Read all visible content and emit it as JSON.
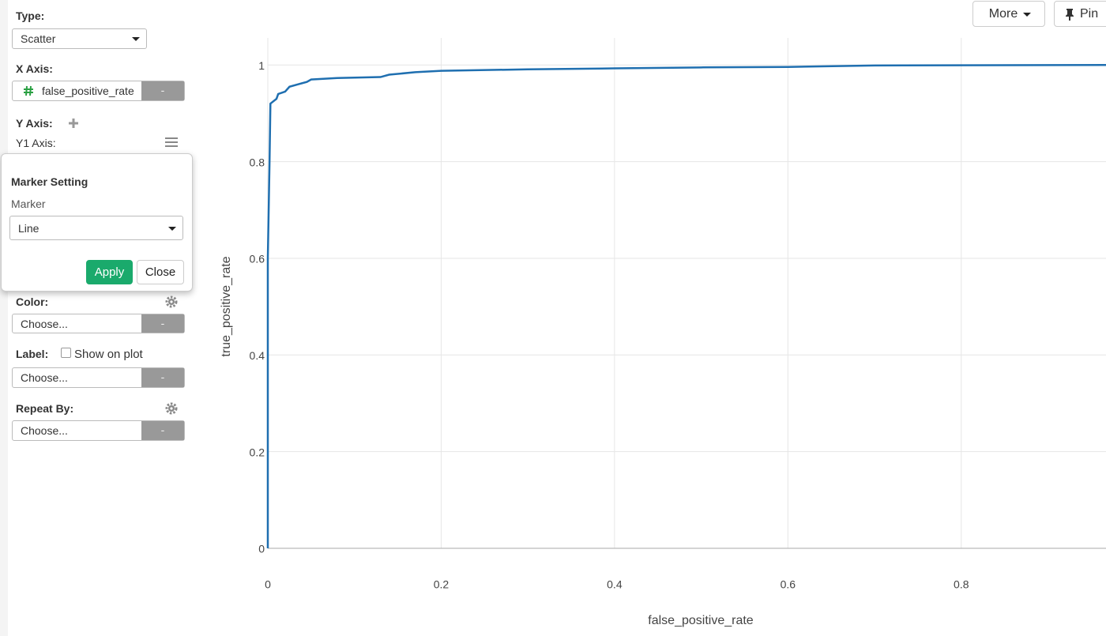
{
  "panel": {
    "type_label": "Type:",
    "type_value": "Scatter",
    "x_axis_label": "X Axis:",
    "x_axis_value": "false_positive_rate",
    "x_axis_remove": "-",
    "y_axis_label": "Y Axis:",
    "y1_axis_label": "Y1 Axis:",
    "popup": {
      "title": "Marker Setting",
      "field_label": "Marker",
      "field_value": "Line",
      "apply": "Apply",
      "close": "Close"
    },
    "color_label": "Color:",
    "color_value": "Choose...",
    "color_remove": "-",
    "label_label": "Label:",
    "label_checkbox": "Show on plot",
    "label_value": "Choose...",
    "label_remove": "-",
    "repeat_label": "Repeat By:",
    "repeat_value": "Choose...",
    "repeat_remove": "-"
  },
  "toolbar": {
    "more": "More",
    "pin": "Pin"
  },
  "chart_data": {
    "type": "line",
    "x_label": "false_positive_rate",
    "y_label": "true_positive_rate",
    "x": [
      0,
      0,
      0.002,
      0.003,
      0.01,
      0.012,
      0.02,
      0.025,
      0.035,
      0.045,
      0.05,
      0.08,
      0.13,
      0.14,
      0.17,
      0.2,
      0.3,
      0.4,
      0.5,
      0.6,
      0.7,
      0.967
    ],
    "values": [
      0,
      0.6,
      0.8,
      0.92,
      0.93,
      0.94,
      0.945,
      0.955,
      0.96,
      0.965,
      0.97,
      0.973,
      0.975,
      0.98,
      0.985,
      0.988,
      0.991,
      0.993,
      0.995,
      0.996,
      0.999,
      1
    ],
    "color": "#1f6fb0",
    "xlim": [
      0,
      0.967
    ],
    "ylim": [
      0,
      1.056
    ],
    "xticks": [
      0,
      0.2,
      0.4,
      0.6,
      0.8
    ],
    "yticks": [
      0,
      0.2,
      0.4,
      0.6,
      0.8,
      1
    ],
    "grid": true
  }
}
